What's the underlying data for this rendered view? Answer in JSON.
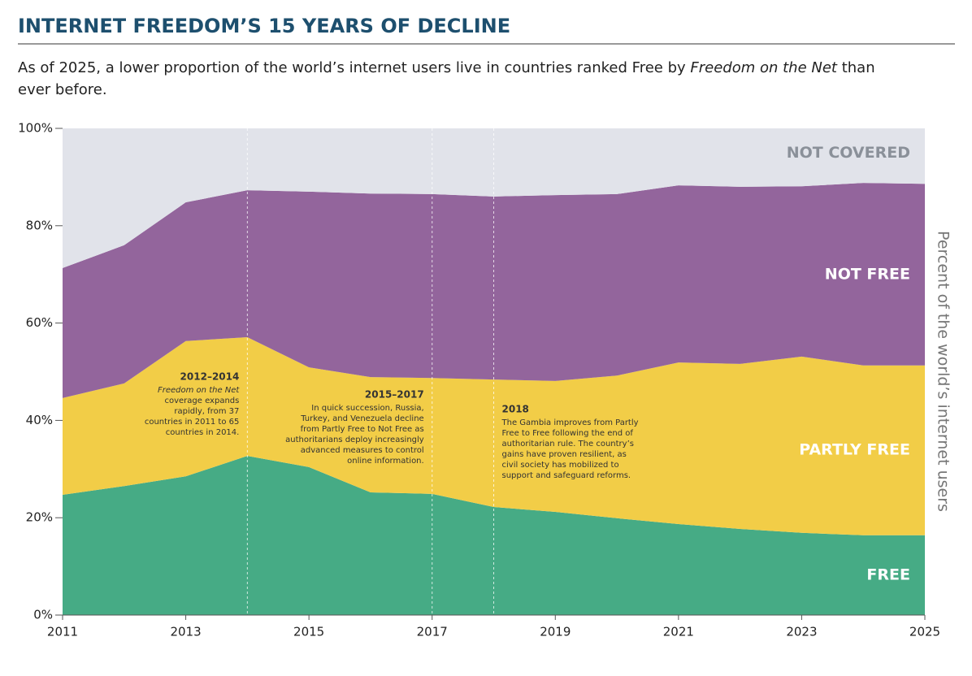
{
  "chart_data": {
    "type": "stacked_area",
    "title": "INTERNET FREEDOM’S 15 YEARS OF DECLINE",
    "subtitle": [
      "As of 2025, a lower proportion of the world’s internet users live in countries ranked Free by ",
      "Freedom on the Net",
      " than",
      "ever before."
    ],
    "y_label": "Percent of the world’s internet users",
    "x": [
      2011,
      2012,
      2013,
      2014,
      2015,
      2016,
      2017,
      2018,
      2019,
      2020,
      2021,
      2022,
      2023,
      2024,
      2025
    ],
    "xlim": [
      2011,
      2025
    ],
    "xticks": [
      2011,
      2013,
      2015,
      2017,
      2019,
      2021,
      2023,
      2025
    ],
    "ylim": [
      0,
      100
    ],
    "yticks": [
      {
        "value": 0,
        "label": "0%"
      },
      {
        "value": 20,
        "label": "20%"
      },
      {
        "value": 40,
        "label": "40%"
      },
      {
        "value": 60,
        "label": "60%"
      },
      {
        "value": 80,
        "label": "80%"
      },
      {
        "value": 100,
        "label": "100%"
      }
    ],
    "grid": false,
    "series": [
      {
        "name": "FREE",
        "color": "#46ab85",
        "label_color": "#ffffff",
        "values": [
          24.7,
          26.5,
          28.5,
          32.7,
          30.4,
          25.2,
          24.9,
          22.2,
          21.2,
          19.9,
          18.7,
          17.7,
          16.9,
          16.4,
          16.4
        ]
      },
      {
        "name": "PARTLY FREE",
        "color": "#f2cd47",
        "label_color": "#ffffff",
        "values": [
          19.9,
          21.1,
          27.8,
          24.4,
          20.5,
          23.7,
          23.8,
          26.2,
          26.9,
          29.3,
          33.2,
          33.9,
          36.2,
          34.9,
          34.9
        ]
      },
      {
        "name": "NOT FREE",
        "color": "#93659c",
        "label_color": "#ffffff",
        "values": [
          26.7,
          28.4,
          28.5,
          30.2,
          36.1,
          37.7,
          37.8,
          37.6,
          38.2,
          37.3,
          36.4,
          36.4,
          35.0,
          37.5,
          37.3
        ]
      },
      {
        "name": "NOT COVERED",
        "color": "#e1e3ea",
        "label_color": "#8a9099",
        "values": [
          28.7,
          24.0,
          15.2,
          12.7,
          13.0,
          13.4,
          13.5,
          14.0,
          13.7,
          13.5,
          11.7,
          12.0,
          11.9,
          11.2,
          11.4
        ]
      }
    ],
    "annotations": [
      {
        "x": 2014,
        "title": "2012–2014",
        "lines": [
          "Freedom on the Net",
          "coverage expands",
          "rapidly, from 37",
          "countries in 2011 to 65",
          "countries in 2014."
        ]
      },
      {
        "x": 2017,
        "title": "2015–2017",
        "lines": [
          "In quick succession, Russia,",
          "Turkey, and Venezuela decline",
          "from Partly Free to Not Free as",
          "authoritarians deploy increasingly",
          "advanced measures to control",
          "online information."
        ]
      },
      {
        "x": 2018,
        "title": "2018",
        "lines": [
          "The Gambia improves from Partly",
          "Free to Free following the end of",
          "authoritarian rule. The country’s",
          "gains have proven resilient, as",
          "civil society has mobilized to",
          "support and safeguard reforms."
        ]
      }
    ]
  }
}
